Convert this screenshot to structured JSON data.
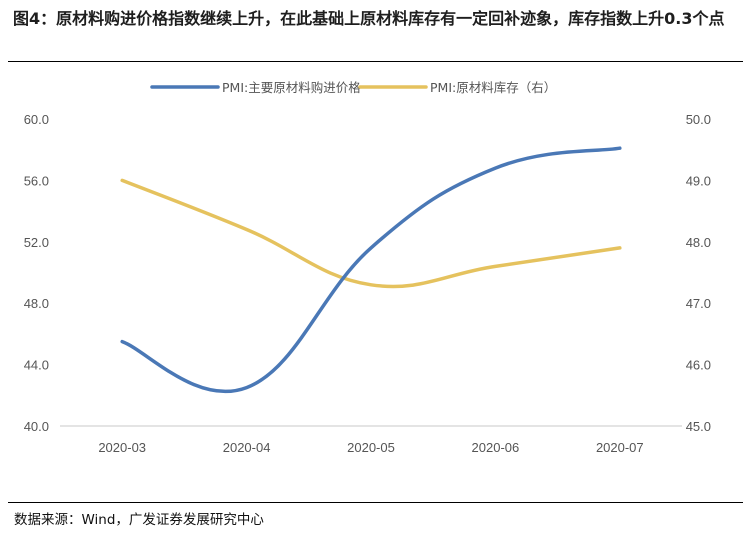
{
  "header": {
    "title": "图4：原材料购进价格指数继续上升，在此基础上原材料库存有一定回补迹象，库存指数上升0.3个点"
  },
  "footer": {
    "source": "数据来源：Wind，广发证券发展研究中心"
  },
  "chart_data": {
    "type": "line",
    "categories": [
      "2020-03",
      "2020-04",
      "2020-05",
      "2020-06",
      "2020-07"
    ],
    "y_left": {
      "range": [
        40,
        60
      ],
      "ticks": [
        "40.0",
        "44.0",
        "48.0",
        "52.0",
        "56.0",
        "60.0"
      ]
    },
    "y_right": {
      "range": [
        45,
        50
      ],
      "ticks": [
        "45.0",
        "46.0",
        "47.0",
        "48.0",
        "49.0",
        "50.0"
      ]
    },
    "series": [
      {
        "name": "PMI:主要原材料购进价格",
        "axis": "left",
        "color": "#4a78b6",
        "values": [
          45.5,
          42.5,
          51.6,
          56.8,
          58.1
        ]
      },
      {
        "name": "PMI:原材料库存（右）",
        "axis": "right",
        "color": "#e5c25e",
        "values": [
          49.0,
          48.2,
          47.3,
          47.6,
          47.9
        ]
      }
    ],
    "grid": false,
    "legend": "top-center",
    "title": "",
    "xlabel": "",
    "ylabel": ""
  }
}
